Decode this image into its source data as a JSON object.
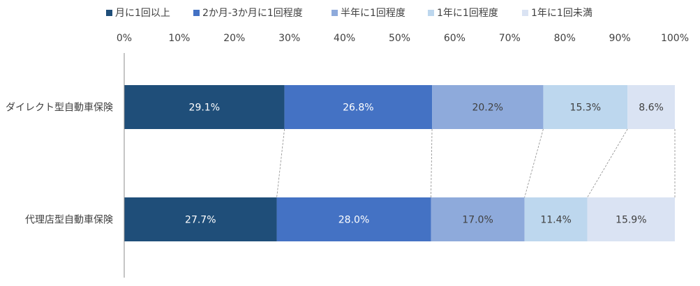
{
  "chart_data": {
    "type": "bar",
    "orientation": "horizontal",
    "stacked": true,
    "percent": true,
    "categories": [
      "ダイレクト型自動車保険",
      "代理店型自動車保険"
    ],
    "series": [
      {
        "name": "月に1回以上",
        "values": [
          29.1,
          27.7
        ],
        "labels": [
          "29.1%",
          "27.7%"
        ],
        "color": "#1f4e79",
        "label_color": "#ffffff"
      },
      {
        "name": "2か月-3か月に1回程度",
        "values": [
          26.8,
          28.0
        ],
        "labels": [
          "26.8%",
          "28.0%"
        ],
        "color": "#4472c4",
        "label_color": "#ffffff"
      },
      {
        "name": "半年に1回程度",
        "values": [
          20.2,
          17.0
        ],
        "labels": [
          "20.2%",
          "17.0%"
        ],
        "color": "#8eaadb",
        "label_color": "#404040"
      },
      {
        "name": "1年に1回程度",
        "values": [
          15.3,
          11.4
        ],
        "labels": [
          "15.3%",
          "11.4%"
        ],
        "color": "#bdd7ee",
        "label_color": "#404040"
      },
      {
        "name": "1年に1回未満",
        "values": [
          8.6,
          15.9
        ],
        "labels": [
          "8.6%",
          "15.9%"
        ],
        "color": "#dae3f3",
        "label_color": "#404040"
      }
    ],
    "xlim": [
      0,
      100
    ],
    "xticks": [
      "0%",
      "10%",
      "20%",
      "30%",
      "40%",
      "50%",
      "60%",
      "70%",
      "80%",
      "90%",
      "100%"
    ],
    "series_lines": true,
    "legend_position": "top",
    "grid": false
  }
}
